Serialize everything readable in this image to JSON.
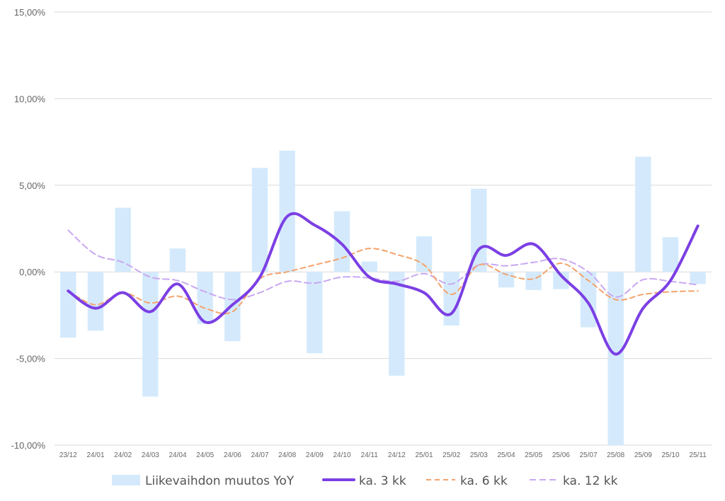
{
  "chart_data": {
    "type": "bar+line",
    "title": "",
    "xlabel": "",
    "ylabel": "",
    "ylim": [
      -10,
      15
    ],
    "y_ticks": [
      15,
      10,
      5,
      0,
      -5,
      -10
    ],
    "y_tick_labels": [
      "15,00%",
      "10,00%",
      "5,00%",
      "0,00%",
      "-5,00%",
      "-10,00%"
    ],
    "categories": [
      "23/12",
      "24/01",
      "24/02",
      "24/03",
      "24/04",
      "24/05",
      "24/06",
      "24/07",
      "24/08",
      "24/09",
      "24/10",
      "24/11",
      "24/12",
      "25/01",
      "25/02",
      "25/03",
      "25/04",
      "25/05",
      "25/06",
      "25/07",
      "25/08",
      "25/09",
      "25/10",
      "25/11"
    ],
    "series": [
      {
        "name": "Liikevaihdon muutos YoY",
        "kind": "bar",
        "color": "#d4eafc",
        "values": [
          -3.8,
          -3.4,
          3.7,
          -7.2,
          1.35,
          -3.0,
          -4.0,
          6.0,
          7.0,
          -4.7,
          3.5,
          0.6,
          -6.0,
          2.05,
          -3.1,
          4.8,
          -0.9,
          -1.05,
          -1.0,
          -3.2,
          -10.0,
          6.65,
          2.0,
          -0.7
        ]
      },
      {
        "name": "ka. 3 kk",
        "kind": "line",
        "style": "solid",
        "color": "#7b3fe4",
        "values": [
          -1.1,
          -2.1,
          -1.2,
          -2.3,
          -0.7,
          -2.9,
          -1.9,
          -0.3,
          3.2,
          2.7,
          1.6,
          -0.3,
          -0.7,
          -1.2,
          -2.4,
          1.3,
          0.95,
          1.6,
          -0.2,
          -1.8,
          -4.75,
          -2.1,
          -0.5,
          2.65
        ]
      },
      {
        "name": "ka. 6 kk",
        "kind": "line",
        "style": "dashed",
        "color": "#f5a26b",
        "values": [
          -1.1,
          -1.9,
          -1.2,
          -1.8,
          -1.4,
          -2.1,
          -2.3,
          -0.4,
          0.0,
          0.4,
          0.8,
          1.35,
          1.0,
          0.4,
          -1.3,
          0.4,
          -0.15,
          -0.4,
          0.5,
          -0.5,
          -1.6,
          -1.3,
          -1.15,
          -1.1
        ]
      },
      {
        "name": "ka. 12 kk",
        "kind": "line",
        "style": "dashed",
        "color": "#c9a8f2",
        "values": [
          2.4,
          1.0,
          0.55,
          -0.3,
          -0.5,
          -1.15,
          -1.6,
          -1.2,
          -0.55,
          -0.65,
          -0.3,
          -0.35,
          -0.55,
          -0.1,
          -0.7,
          0.4,
          0.35,
          0.55,
          0.75,
          0.0,
          -1.45,
          -0.45,
          -0.55,
          -0.75
        ]
      }
    ],
    "legend_position": "bottom",
    "grid": true,
    "colors": {
      "grid": "#d9d9d9",
      "tick_text": "#666666"
    }
  }
}
